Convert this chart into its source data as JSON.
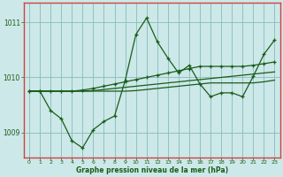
{
  "title": "Graphe pression niveau de la mer (hPa)",
  "bg_color": "#cce8e8",
  "grid_color": "#88bbbb",
  "line_color": "#1a5c1a",
  "border_color": "#cc4444",
  "xlim": [
    -0.5,
    23.5
  ],
  "ylim": [
    1008.55,
    1011.35
  ],
  "yticks": [
    1009,
    1010,
    1011
  ],
  "ytick_labels": [
    "1009",
    "1010",
    "1011"
  ],
  "xticks": [
    0,
    1,
    2,
    3,
    4,
    5,
    6,
    7,
    8,
    9,
    10,
    11,
    12,
    13,
    14,
    15,
    16,
    17,
    18,
    19,
    20,
    21,
    22,
    23
  ],
  "series1": [
    1009.75,
    1009.75,
    1009.4,
    1009.25,
    1008.85,
    1008.72,
    1009.05,
    1009.2,
    1009.3,
    1009.95,
    1010.78,
    1011.08,
    1010.65,
    1010.35,
    1010.08,
    1010.22,
    1009.88,
    1009.65,
    1009.72,
    1009.72,
    1009.65,
    1010.02,
    1010.42,
    1010.68
  ],
  "series2": [
    1009.75,
    1009.75,
    1009.75,
    1009.75,
    1009.75,
    1009.77,
    1009.8,
    1009.84,
    1009.88,
    1009.92,
    1009.96,
    1010.0,
    1010.04,
    1010.08,
    1010.12,
    1010.16,
    1010.2,
    1010.2,
    1010.2,
    1010.2,
    1010.2,
    1010.22,
    1010.25,
    1010.28
  ],
  "series3": [
    1009.75,
    1009.75,
    1009.75,
    1009.75,
    1009.75,
    1009.75,
    1009.75,
    1009.75,
    1009.75,
    1009.75,
    1009.76,
    1009.78,
    1009.8,
    1009.82,
    1009.84,
    1009.86,
    1009.88,
    1009.9,
    1009.9,
    1009.9,
    1009.9,
    1009.9,
    1009.92,
    1009.95
  ],
  "series4": [
    1009.75,
    1009.75,
    1009.75,
    1009.75,
    1009.75,
    1009.75,
    1009.76,
    1009.78,
    1009.8,
    1009.82,
    1009.84,
    1009.86,
    1009.88,
    1009.9,
    1009.92,
    1009.94,
    1009.96,
    1009.98,
    1010.0,
    1010.02,
    1010.04,
    1010.06,
    1010.08,
    1010.1
  ]
}
